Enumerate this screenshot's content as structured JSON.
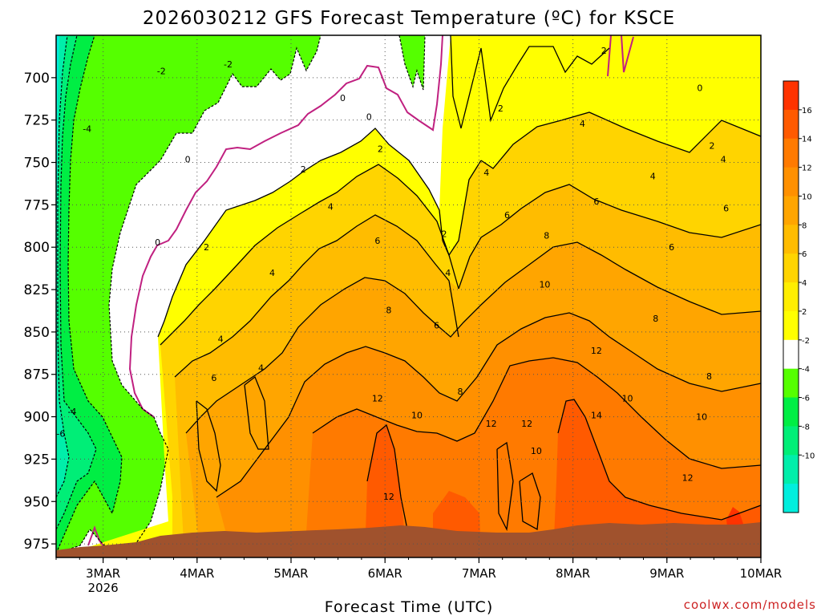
{
  "chart_data": {
    "type": "heatmap",
    "title": "2026030212 GFS Forecast Temperature (ºC) for KSCE",
    "xlabel": "Forecast Time (UTC)",
    "ylabel": "",
    "x_ticks": [
      {
        "label": "3MAR",
        "sub": "2026"
      },
      {
        "label": "4MAR",
        "sub": ""
      },
      {
        "label": "5MAR",
        "sub": ""
      },
      {
        "label": "6MAR",
        "sub": ""
      },
      {
        "label": "7MAR",
        "sub": ""
      },
      {
        "label": "8MAR",
        "sub": ""
      },
      {
        "label": "9MAR",
        "sub": ""
      },
      {
        "label": "10MAR",
        "sub": ""
      }
    ],
    "x_range_days": [
      2.5,
      10.0
    ],
    "y_ticks": [
      700,
      725,
      750,
      775,
      800,
      825,
      850,
      875,
      900,
      925,
      950,
      975
    ],
    "y_range_hpa": [
      675,
      983
    ],
    "grid": true,
    "colorbar": {
      "labels": [
        "16",
        "14",
        "12",
        "10",
        "8",
        "6",
        "4",
        "2",
        "-2",
        "-4",
        "-6",
        "-8",
        "-10"
      ],
      "colors": [
        "#ff3300",
        "#ff5a00",
        "#ff7a00",
        "#ff9000",
        "#ffa500",
        "#ffbc00",
        "#ffd400",
        "#ffee00",
        "#ffff00",
        "#ffffff",
        "#55ff00",
        "#00ee44",
        "#00ee77",
        "#00eeaa",
        "#00eedd"
      ]
    },
    "contour_labels": [
      {
        "t": 3.62,
        "p": 696,
        "v": "-2"
      },
      {
        "t": 4.33,
        "p": 692,
        "v": "-2"
      },
      {
        "t": 2.83,
        "p": 730,
        "v": "-4"
      },
      {
        "t": 2.67,
        "p": 897,
        "v": "-4"
      },
      {
        "t": 2.55,
        "p": 910,
        "v": "-6"
      },
      {
        "t": 5.55,
        "p": 712,
        "v": "0"
      },
      {
        "t": 5.83,
        "p": 723,
        "v": "0"
      },
      {
        "t": 3.9,
        "p": 748,
        "v": "0"
      },
      {
        "t": 3.58,
        "p": 797,
        "v": "0"
      },
      {
        "t": 9.35,
        "p": 706,
        "v": "0"
      },
      {
        "t": 8.33,
        "p": 684,
        "v": "2"
      },
      {
        "t": 7.23,
        "p": 718,
        "v": "2"
      },
      {
        "t": 5.95,
        "p": 742,
        "v": "2"
      },
      {
        "t": 5.13,
        "p": 754,
        "v": "2"
      },
      {
        "t": 4.1,
        "p": 800,
        "v": "2"
      },
      {
        "t": 6.63,
        "p": 792,
        "v": "2"
      },
      {
        "t": 9.48,
        "p": 740,
        "v": "2"
      },
      {
        "t": 8.1,
        "p": 727,
        "v": "4"
      },
      {
        "t": 7.08,
        "p": 756,
        "v": "4"
      },
      {
        "t": 9.6,
        "p": 748,
        "v": "4"
      },
      {
        "t": 8.85,
        "p": 758,
        "v": "4"
      },
      {
        "t": 5.42,
        "p": 776,
        "v": "4"
      },
      {
        "t": 4.8,
        "p": 815,
        "v": "4"
      },
      {
        "t": 6.67,
        "p": 815,
        "v": "4"
      },
      {
        "t": 4.25,
        "p": 854,
        "v": "4"
      },
      {
        "t": 4.68,
        "p": 871,
        "v": "4"
      },
      {
        "t": 7.3,
        "p": 781,
        "v": "6"
      },
      {
        "t": 8.25,
        "p": 773,
        "v": "6"
      },
      {
        "t": 9.63,
        "p": 777,
        "v": "6"
      },
      {
        "t": 9.05,
        "p": 800,
        "v": "6"
      },
      {
        "t": 5.92,
        "p": 796,
        "v": "6"
      },
      {
        "t": 6.55,
        "p": 846,
        "v": "6"
      },
      {
        "t": 4.18,
        "p": 877,
        "v": "6"
      },
      {
        "t": 7.72,
        "p": 793,
        "v": "8"
      },
      {
        "t": 6.04,
        "p": 837,
        "v": "8"
      },
      {
        "t": 8.88,
        "p": 842,
        "v": "8"
      },
      {
        "t": 9.45,
        "p": 876,
        "v": "8"
      },
      {
        "t": 6.8,
        "p": 885,
        "v": "8"
      },
      {
        "t": 7.7,
        "p": 822,
        "v": "10"
      },
      {
        "t": 8.58,
        "p": 889,
        "v": "10"
      },
      {
        "t": 9.37,
        "p": 900,
        "v": "10"
      },
      {
        "t": 6.34,
        "p": 899,
        "v": "10"
      },
      {
        "t": 7.61,
        "p": 920,
        "v": "10"
      },
      {
        "t": 8.25,
        "p": 861,
        "v": "12"
      },
      {
        "t": 5.92,
        "p": 889,
        "v": "12"
      },
      {
        "t": 7.13,
        "p": 904,
        "v": "12"
      },
      {
        "t": 7.51,
        "p": 904,
        "v": "12"
      },
      {
        "t": 6.04,
        "p": 947,
        "v": "12"
      },
      {
        "t": 9.22,
        "p": 936,
        "v": "12"
      },
      {
        "t": 8.25,
        "p": 899,
        "v": "14"
      }
    ]
  },
  "credit": "coolwx.com/models"
}
